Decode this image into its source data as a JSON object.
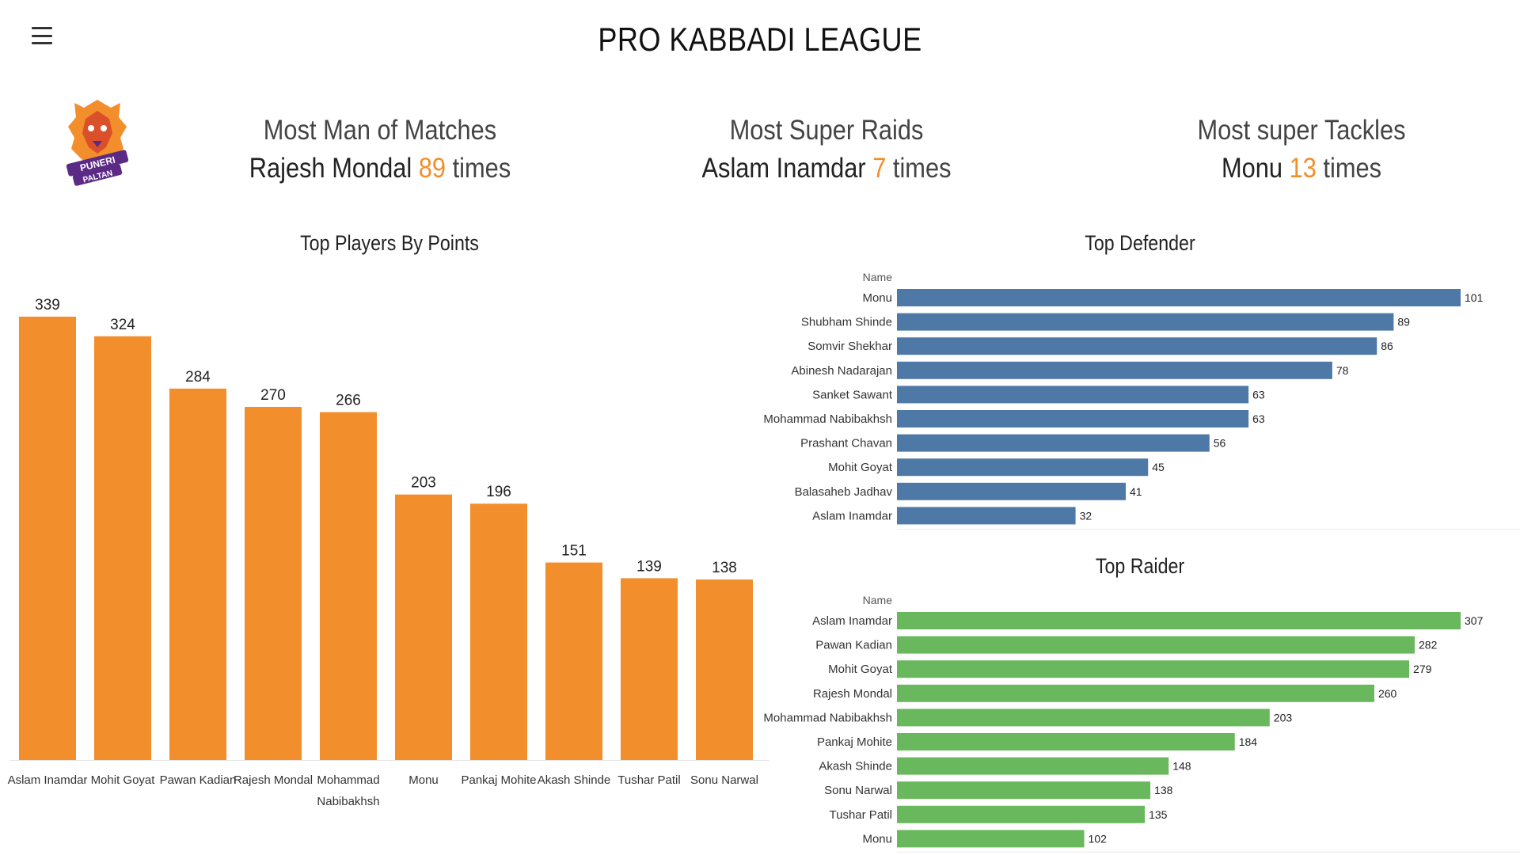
{
  "header": {
    "title": "PRO KABBADI LEAGUE",
    "menu_icon": "hamburger-menu-icon"
  },
  "logo": {
    "text_top": "PUNERI",
    "text_bottom": "PALTAN",
    "icon": "puneri-paltan-lion-logo"
  },
  "kpis": [
    {
      "label": "Most Man of Matches",
      "name": "Rajesh Mondal",
      "value": "89",
      "unit": "times"
    },
    {
      "label": "Most Super Raids",
      "name": "Aslam Inamdar",
      "value": "7",
      "unit": "times"
    },
    {
      "label": "Most super Tackles",
      "name": "Monu",
      "value": "13",
      "unit": "times"
    }
  ],
  "colors": {
    "orange": "#f28e2b",
    "blue": "#4e79a7",
    "green": "#6ab85d"
  },
  "chart_data": [
    {
      "type": "bar",
      "title": "Top Players By Points",
      "categories": [
        "Aslam Inamdar",
        "Mohit Goyat",
        "Pawan Kadian",
        "Rajesh Mondal",
        "Mohammad Nabibakhsh",
        "Monu",
        "Pankaj Mohite",
        "Akash Shinde",
        "Tushar Patil",
        "Sonu Narwal"
      ],
      "values": [
        339,
        324,
        284,
        270,
        266,
        203,
        196,
        151,
        139,
        138
      ],
      "ylim": [
        0,
        339
      ],
      "grid": false
    },
    {
      "type": "bar",
      "orientation": "horizontal",
      "title": "Top Defender",
      "axis_header": "Name",
      "categories": [
        "Monu",
        "Shubham Shinde",
        "Somvir Shekhar",
        "Abinesh Nadarajan",
        "Sanket Sawant",
        "Mohammad Nabibakhsh",
        "Prashant Chavan",
        "Mohit Goyat",
        "Balasaheb Jadhav",
        "Aslam Inamdar"
      ],
      "values": [
        101,
        89,
        86,
        78,
        63,
        63,
        56,
        45,
        41,
        32
      ],
      "xlim": [
        0,
        101
      ],
      "grid": false
    },
    {
      "type": "bar",
      "orientation": "horizontal",
      "title": "Top Raider",
      "axis_header": "Name",
      "categories": [
        "Aslam Inamdar",
        "Pawan Kadian",
        "Mohit Goyat",
        "Rajesh Mondal",
        "Mohammad Nabibakhsh",
        "Pankaj Mohite",
        "Akash Shinde",
        "Sonu Narwal",
        "Tushar Patil",
        "Monu"
      ],
      "values": [
        307,
        282,
        279,
        260,
        203,
        184,
        148,
        138,
        135,
        102
      ],
      "xlim": [
        0,
        307
      ],
      "grid": false
    }
  ]
}
